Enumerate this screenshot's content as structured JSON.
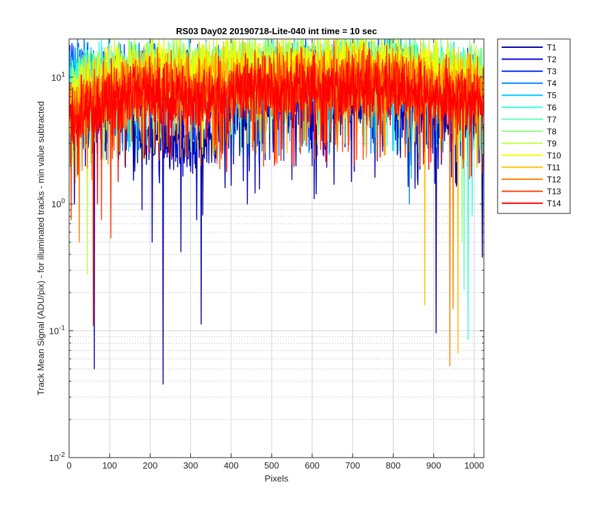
{
  "chart_data": {
    "type": "line",
    "title": "RS03 Day02 20190718-Lite-040 int time = 10 sec",
    "xlabel": "Pixels",
    "ylabel": "Track Mean Signal (ADU/pix) - for illuminated tracks - min value subtracted",
    "xlim": [
      0,
      1024
    ],
    "ylim": [
      0.01,
      20
    ],
    "yscale": "log",
    "x_ticks": [
      {
        "value": 0,
        "label": "0"
      },
      {
        "value": 100,
        "label": "100"
      },
      {
        "value": 200,
        "label": "200"
      },
      {
        "value": 300,
        "label": "300"
      },
      {
        "value": 400,
        "label": "400"
      },
      {
        "value": 500,
        "label": "500"
      },
      {
        "value": 600,
        "label": "600"
      },
      {
        "value": 700,
        "label": "700"
      },
      {
        "value": 800,
        "label": "800"
      },
      {
        "value": 900,
        "label": "900"
      },
      {
        "value": 1000,
        "label": "1000"
      }
    ],
    "y_ticks": [
      {
        "value": 0.01,
        "base": "10",
        "exp": "-2"
      },
      {
        "value": 0.1,
        "base": "10",
        "exp": "-1"
      },
      {
        "value": 1,
        "base": "10",
        "exp": "0"
      },
      {
        "value": 10,
        "base": "10",
        "exp": "1"
      }
    ],
    "grid": "major and minor",
    "legend_position": "outside-right",
    "series": [
      {
        "name": "T1",
        "color": "#0000a8",
        "profile": [
          [
            0,
            7.0
          ],
          [
            100,
            5.0
          ],
          [
            200,
            3.5
          ],
          [
            300,
            3.0
          ],
          [
            400,
            4.5
          ],
          [
            500,
            6.0
          ],
          [
            600,
            5.5
          ],
          [
            700,
            6.5
          ],
          [
            800,
            6.0
          ],
          [
            900,
            5.0
          ],
          [
            1000,
            4.5
          ],
          [
            1023,
            4.0
          ]
        ],
        "dips": [
          [
            13,
            1.0
          ],
          [
            62,
            0.05
          ],
          [
            180,
            0.9
          ],
          [
            205,
            0.5
          ],
          [
            232,
            0.038
          ],
          [
            276,
            0.42
          ],
          [
            315,
            0.75
          ],
          [
            326,
            0.113
          ],
          [
            400,
            1.4
          ],
          [
            440,
            1.0
          ],
          [
            605,
            1.1
          ],
          [
            610,
            1.2
          ],
          [
            906,
            0.096
          ],
          [
            1020,
            0.38
          ]
        ]
      },
      {
        "name": "T2",
        "color": "#0000e0",
        "profile": [
          [
            0,
            9.0
          ],
          [
            100,
            8.0
          ],
          [
            200,
            7.0
          ],
          [
            300,
            6.5
          ],
          [
            400,
            7.5
          ],
          [
            500,
            8.5
          ],
          [
            600,
            8.0
          ],
          [
            700,
            9.0
          ],
          [
            800,
            8.5
          ],
          [
            900,
            7.5
          ],
          [
            1000,
            7.0
          ],
          [
            1023,
            6.5
          ]
        ],
        "dips": [
          [
            40,
            2.0
          ],
          [
            300,
            1.8
          ],
          [
            600,
            2.0
          ]
        ]
      },
      {
        "name": "T3",
        "color": "#0030ff",
        "profile": [
          [
            0,
            11.0
          ],
          [
            100,
            9.5
          ],
          [
            200,
            9.0
          ],
          [
            300,
            8.5
          ],
          [
            400,
            9.0
          ],
          [
            500,
            9.5
          ],
          [
            600,
            9.5
          ],
          [
            700,
            10.0
          ],
          [
            800,
            9.5
          ],
          [
            900,
            8.5
          ],
          [
            1000,
            8.0
          ],
          [
            1023,
            7.5
          ]
        ],
        "dips": []
      },
      {
        "name": "T4",
        "color": "#0080ff",
        "profile": [
          [
            0,
            11.0
          ],
          [
            100,
            10.0
          ],
          [
            200,
            10.0
          ],
          [
            300,
            9.5
          ],
          [
            400,
            10.0
          ],
          [
            500,
            10.5
          ],
          [
            600,
            10.5
          ],
          [
            700,
            11.0
          ],
          [
            800,
            10.5
          ],
          [
            900,
            9.5
          ],
          [
            1000,
            9.0
          ],
          [
            1023,
            8.5
          ]
        ],
        "dips": [
          [
            840,
            1.0
          ]
        ]
      },
      {
        "name": "T5",
        "color": "#00c8ff",
        "profile": [
          [
            0,
            9.0
          ],
          [
            100,
            10.0
          ],
          [
            200,
            10.0
          ],
          [
            300,
            9.5
          ],
          [
            400,
            10.0
          ],
          [
            500,
            10.5
          ],
          [
            600,
            10.5
          ],
          [
            700,
            11.0
          ],
          [
            800,
            10.5
          ],
          [
            900,
            9.5
          ],
          [
            1000,
            9.0
          ],
          [
            1023,
            8.5
          ]
        ],
        "dips": [
          [
            845,
            1.6
          ]
        ]
      },
      {
        "name": "T6",
        "color": "#30ffe0",
        "profile": [
          [
            0,
            8.5
          ],
          [
            100,
            10.0
          ],
          [
            200,
            10.5
          ],
          [
            300,
            10.0
          ],
          [
            400,
            10.5
          ],
          [
            500,
            11.0
          ],
          [
            600,
            11.0
          ],
          [
            700,
            11.5
          ],
          [
            800,
            11.0
          ],
          [
            900,
            10.0
          ],
          [
            1000,
            9.5
          ],
          [
            1023,
            9.0
          ]
        ],
        "dips": [
          [
            985,
            0.085
          ],
          [
            995,
            0.8
          ]
        ]
      },
      {
        "name": "T7",
        "color": "#60ffb0",
        "profile": [
          [
            0,
            8.0
          ],
          [
            100,
            10.0
          ],
          [
            200,
            11.0
          ],
          [
            300,
            10.5
          ],
          [
            400,
            11.0
          ],
          [
            500,
            11.5
          ],
          [
            600,
            11.5
          ],
          [
            700,
            12.0
          ],
          [
            800,
            11.5
          ],
          [
            900,
            10.5
          ],
          [
            1000,
            10.0
          ],
          [
            1023,
            9.5
          ]
        ],
        "dips": [
          [
            975,
            0.21
          ]
        ]
      },
      {
        "name": "T8",
        "color": "#90ff80",
        "profile": [
          [
            0,
            7.5
          ],
          [
            100,
            10.0
          ],
          [
            200,
            11.5
          ],
          [
            300,
            11.0
          ],
          [
            400,
            11.5
          ],
          [
            500,
            12.0
          ],
          [
            600,
            12.0
          ],
          [
            700,
            12.5
          ],
          [
            800,
            12.0
          ],
          [
            900,
            11.0
          ],
          [
            1000,
            10.5
          ],
          [
            1023,
            10.0
          ]
        ],
        "dips": [
          [
            970,
            0.5
          ]
        ]
      },
      {
        "name": "T9",
        "color": "#c0ff40",
        "profile": [
          [
            0,
            7.0
          ],
          [
            100,
            10.0
          ],
          [
            200,
            12.0
          ],
          [
            300,
            11.5
          ],
          [
            400,
            12.0
          ],
          [
            500,
            12.5
          ],
          [
            600,
            12.5
          ],
          [
            700,
            13.0
          ],
          [
            800,
            12.5
          ],
          [
            900,
            11.5
          ],
          [
            1000,
            11.0
          ],
          [
            1023,
            10.5
          ]
        ],
        "dips": [
          [
            45,
            0.28
          ]
        ]
      },
      {
        "name": "T10",
        "color": "#f0ff00",
        "profile": [
          [
            0,
            6.5
          ],
          [
            100,
            9.5
          ],
          [
            200,
            11.0
          ],
          [
            300,
            10.5
          ],
          [
            400,
            11.0
          ],
          [
            500,
            11.5
          ],
          [
            600,
            11.5
          ],
          [
            700,
            12.0
          ],
          [
            800,
            11.5
          ],
          [
            900,
            10.5
          ],
          [
            1000,
            10.0
          ],
          [
            1023,
            9.5
          ]
        ],
        "dips": []
      },
      {
        "name": "T11",
        "color": "#ffc000",
        "profile": [
          [
            0,
            6.0
          ],
          [
            100,
            8.5
          ],
          [
            200,
            9.5
          ],
          [
            300,
            9.0
          ],
          [
            400,
            9.5
          ],
          [
            500,
            10.0
          ],
          [
            600,
            10.0
          ],
          [
            700,
            10.5
          ],
          [
            800,
            10.0
          ],
          [
            900,
            9.0
          ],
          [
            1000,
            8.5
          ],
          [
            1023,
            8.0
          ]
        ],
        "dips": [
          [
            878,
            0.16
          ],
          [
            960,
            0.067
          ]
        ]
      },
      {
        "name": "T12",
        "color": "#ff8000",
        "profile": [
          [
            0,
            5.5
          ],
          [
            100,
            7.5
          ],
          [
            200,
            8.5
          ],
          [
            300,
            8.0
          ],
          [
            400,
            8.5
          ],
          [
            500,
            9.0
          ],
          [
            600,
            9.0
          ],
          [
            700,
            9.5
          ],
          [
            800,
            9.0
          ],
          [
            900,
            8.0
          ],
          [
            1000,
            7.5
          ],
          [
            1023,
            7.0
          ]
        ],
        "dips": [
          [
            25,
            0.5
          ],
          [
            940,
            0.053
          ],
          [
            948,
            0.15
          ]
        ]
      },
      {
        "name": "T13",
        "color": "#ff4000",
        "profile": [
          [
            0,
            5.0
          ],
          [
            100,
            7.0
          ],
          [
            200,
            8.0
          ],
          [
            300,
            7.5
          ],
          [
            400,
            8.0
          ],
          [
            500,
            8.5
          ],
          [
            600,
            8.5
          ],
          [
            700,
            9.0
          ],
          [
            800,
            8.5
          ],
          [
            900,
            7.5
          ],
          [
            1000,
            7.0
          ],
          [
            1023,
            6.5
          ]
        ],
        "dips": [
          [
            5,
            0.75
          ],
          [
            80,
            0.75
          ],
          [
            103,
            0.54
          ]
        ]
      },
      {
        "name": "T14",
        "color": "#ff0000",
        "profile": [
          [
            0,
            4.5
          ],
          [
            100,
            6.5
          ],
          [
            200,
            7.5
          ],
          [
            300,
            7.0
          ],
          [
            400,
            7.5
          ],
          [
            500,
            8.0
          ],
          [
            600,
            8.0
          ],
          [
            700,
            8.5
          ],
          [
            800,
            8.0
          ],
          [
            900,
            7.0
          ],
          [
            1000,
            6.5
          ],
          [
            1023,
            6.0
          ]
        ],
        "dips": [
          [
            60,
            0.11
          ],
          [
            70,
            1.0
          ]
        ]
      }
    ]
  }
}
